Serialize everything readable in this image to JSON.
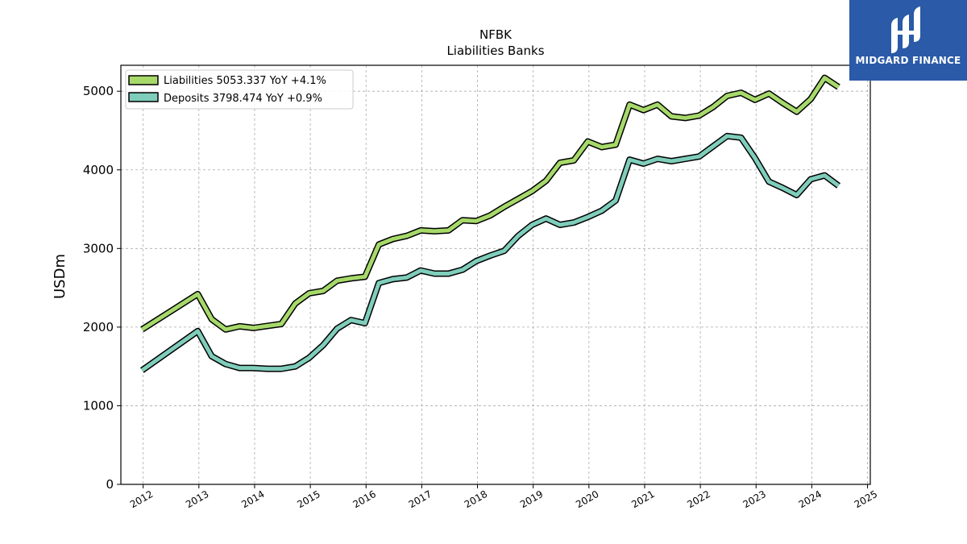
{
  "chart_data": {
    "type": "line",
    "title": "NFBK",
    "subtitle": "Liabilities Banks",
    "ylabel": "USDm",
    "xlabel": "",
    "xlim": [
      2011.6,
      2025.05
    ],
    "ylim": [
      0,
      5330
    ],
    "x_ticks": [
      2012,
      2013,
      2014,
      2015,
      2016,
      2017,
      2018,
      2019,
      2020,
      2021,
      2022,
      2023,
      2024,
      2025
    ],
    "y_ticks": [
      0,
      1000,
      2000,
      3000,
      4000,
      5000
    ],
    "grid": true,
    "legend_position": "top-left",
    "x": [
      2011.98,
      2012.98,
      2013.23,
      2013.48,
      2013.73,
      2013.98,
      2014.23,
      2014.48,
      2014.73,
      2014.98,
      2015.23,
      2015.48,
      2015.73,
      2015.98,
      2016.23,
      2016.48,
      2016.73,
      2016.98,
      2017.23,
      2017.48,
      2017.73,
      2017.98,
      2018.23,
      2018.48,
      2018.73,
      2018.98,
      2019.23,
      2019.48,
      2019.73,
      2019.98,
      2020.23,
      2020.48,
      2020.73,
      2020.98,
      2021.23,
      2021.48,
      2021.73,
      2021.98,
      2022.23,
      2022.48,
      2022.73,
      2022.98,
      2023.23,
      2023.48,
      2023.73,
      2023.98,
      2024.23,
      2024.48
    ],
    "series": [
      {
        "name": "Liabilities",
        "legend_label": "Liabilities  5053.337 YoY +4.1%",
        "color": "#a6d96a",
        "values": [
          1970,
          2420,
          2100,
          1970,
          2010,
          1990,
          2015,
          2040,
          2300,
          2430,
          2460,
          2590,
          2620,
          2640,
          3050,
          3120,
          3160,
          3230,
          3220,
          3230,
          3360,
          3350,
          3420,
          3530,
          3630,
          3730,
          3860,
          4090,
          4120,
          4360,
          4290,
          4320,
          4830,
          4760,
          4830,
          4680,
          4660,
          4690,
          4800,
          4940,
          4980,
          4890,
          4970,
          4850,
          4740,
          4900,
          5170,
          5053
        ]
      },
      {
        "name": "Deposits",
        "legend_label": "Deposits  3798.474 YoY +0.9%",
        "color": "#7fcdbb",
        "values": [
          1450,
          1950,
          1630,
          1530,
          1480,
          1480,
          1470,
          1470,
          1500,
          1610,
          1770,
          1980,
          2090,
          2050,
          2560,
          2610,
          2630,
          2720,
          2680,
          2680,
          2730,
          2840,
          2910,
          2970,
          3160,
          3300,
          3380,
          3300,
          3330,
          3400,
          3480,
          3610,
          4130,
          4080,
          4140,
          4110,
          4140,
          4170,
          4300,
          4430,
          4410,
          4150,
          3850,
          3770,
          3680,
          3880,
          3930,
          3798
        ]
      }
    ]
  },
  "logo": {
    "text": "MIDGARD FINANCE",
    "bg_color": "#2a5aa8"
  }
}
